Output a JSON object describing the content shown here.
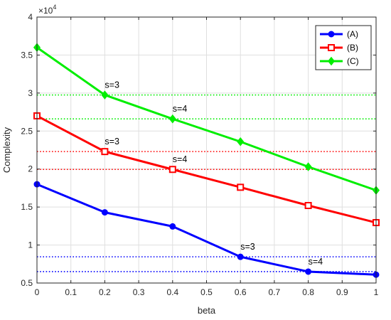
{
  "chart_data": {
    "type": "line",
    "title": "",
    "xlabel": "beta",
    "ylabel": "Complexity",
    "y_exponent_label": "×10",
    "y_exponent_power": "4",
    "x": [
      0,
      0.2,
      0.4,
      0.6,
      0.8,
      1
    ],
    "xlim": [
      0,
      1
    ],
    "ylim": [
      0.5,
      4
    ],
    "xticks": [
      0,
      0.1,
      0.2,
      0.3,
      0.4,
      0.5,
      0.6,
      0.7,
      0.8,
      0.9,
      1
    ],
    "xtick_labels": [
      "0",
      "0.1",
      "0.2",
      "0.3",
      "0.4",
      "0.5",
      "0.6",
      "0.7",
      "0.8",
      "0.9",
      "1"
    ],
    "yticks": [
      0.5,
      1,
      1.5,
      2,
      2.5,
      3,
      3.5,
      4
    ],
    "ytick_labels": [
      "0.5",
      "1",
      "1.5",
      "2",
      "2.5",
      "3",
      "3.5",
      "4"
    ],
    "grid": true,
    "legend_position": "top-right",
    "series": [
      {
        "name": "(A)",
        "color": "#0000ff",
        "marker": "circle",
        "values": [
          1.8,
          1.43,
          1.245,
          0.845,
          0.65,
          0.61
        ]
      },
      {
        "name": "(B)",
        "color": "#ff0000",
        "marker": "square",
        "values": [
          2.7,
          2.23,
          1.995,
          1.76,
          1.52,
          1.295
        ]
      },
      {
        "name": "(C)",
        "color": "#00ee00",
        "marker": "diamond",
        "values": [
          3.6,
          2.975,
          2.66,
          2.36,
          2.03,
          1.72
        ]
      }
    ],
    "reference_lines": [
      {
        "y": 2.975,
        "color": "#00ee00"
      },
      {
        "y": 2.66,
        "color": "#00ee00"
      },
      {
        "y": 2.23,
        "color": "#ff0000"
      },
      {
        "y": 1.995,
        "color": "#ff0000"
      },
      {
        "y": 0.845,
        "color": "#0000ff"
      },
      {
        "y": 0.65,
        "color": "#0000ff"
      }
    ],
    "annotations": [
      {
        "text": "s=3",
        "x": 0.2,
        "y": 2.975,
        "color": "#00ee00"
      },
      {
        "text": "s=4",
        "x": 0.4,
        "y": 2.66,
        "color": "#00ee00"
      },
      {
        "text": "s=3",
        "x": 0.2,
        "y": 2.23,
        "color": "#ff0000"
      },
      {
        "text": "s=4",
        "x": 0.4,
        "y": 1.995,
        "color": "#ff0000"
      },
      {
        "text": "s=3",
        "x": 0.6,
        "y": 0.845,
        "color": "#0000ff"
      },
      {
        "text": "s=4",
        "x": 0.8,
        "y": 0.65,
        "color": "#0000ff"
      }
    ]
  }
}
